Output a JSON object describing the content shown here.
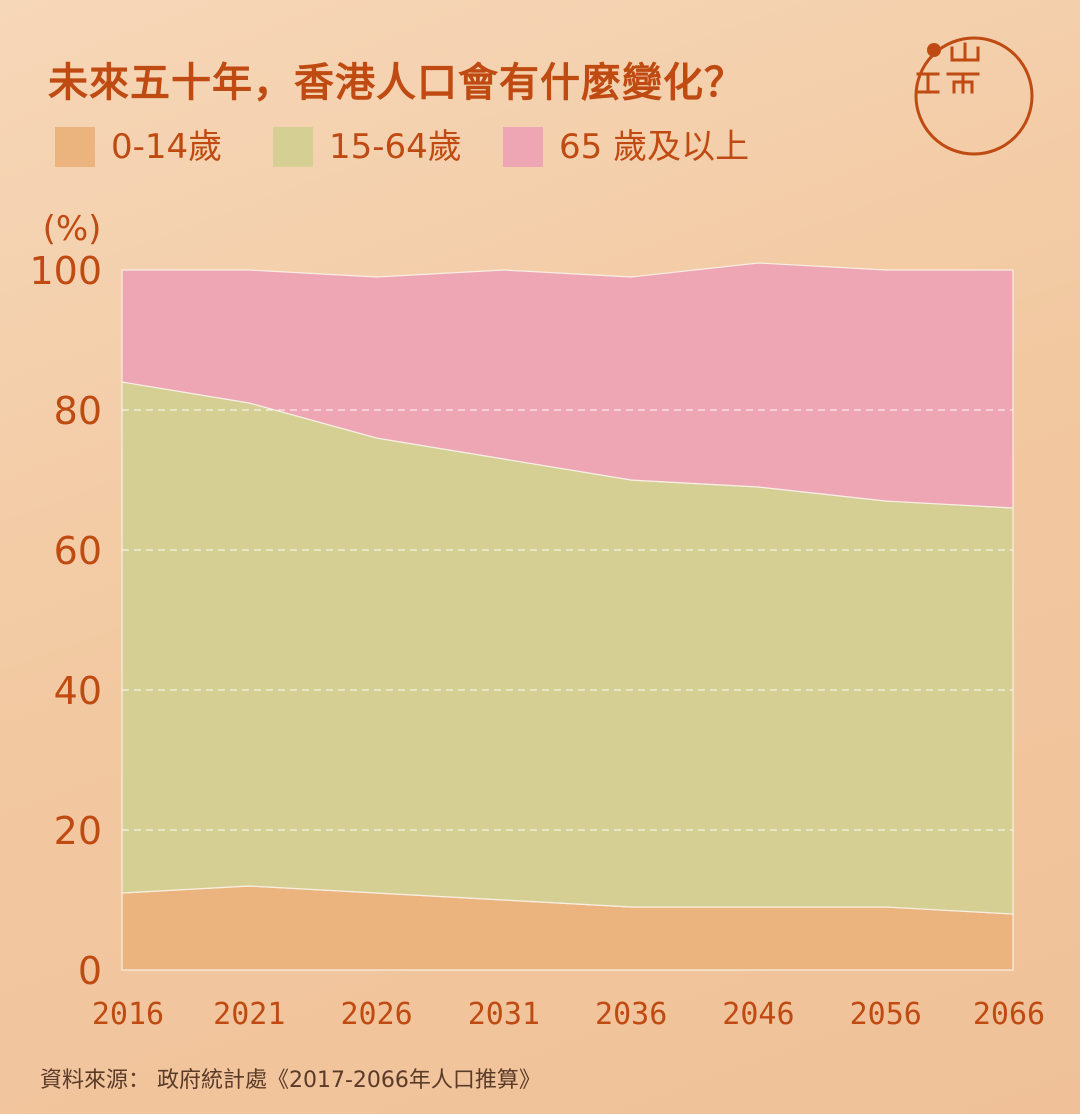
{
  "title": "未來五十年，香港人口會有什麼變化？",
  "legend": [
    {
      "label": "0-14歲",
      "color": "#ebb47e"
    },
    {
      "label": "15-64歲",
      "color": "#d6cf94"
    },
    {
      "label": "65  歲及以上",
      "color": "#eea6b5"
    }
  ],
  "source": "資料來源： 政府統計處《2017-2066年人口推算》",
  "colors": {
    "accent": "#bf4a12",
    "grid": "#ffffff"
  },
  "chart_data": {
    "type": "area",
    "stacked": true,
    "ylabel": "(%)",
    "ylim": [
      0,
      100
    ],
    "yticks": [
      "0",
      "20",
      "40",
      "60",
      "80",
      "100"
    ],
    "categories": [
      "2016",
      "2021",
      "2026",
      "2031",
      "2036",
      "2046",
      "2056",
      "2066"
    ],
    "series": [
      {
        "name": "0-14歲",
        "color": "#ebb47e",
        "values": [
          11,
          12,
          11,
          10,
          9,
          9,
          9,
          8
        ]
      },
      {
        "name": "15-64歲",
        "color": "#d6cf94",
        "values": [
          73,
          69,
          65,
          63,
          61,
          60,
          58,
          58
        ]
      },
      {
        "name": "65  歲及以上",
        "color": "#eea6b5",
        "values": [
          16,
          19,
          23,
          27,
          29,
          32,
          33,
          34
        ]
      }
    ],
    "grid": true,
    "legend_position": "top-left"
  }
}
